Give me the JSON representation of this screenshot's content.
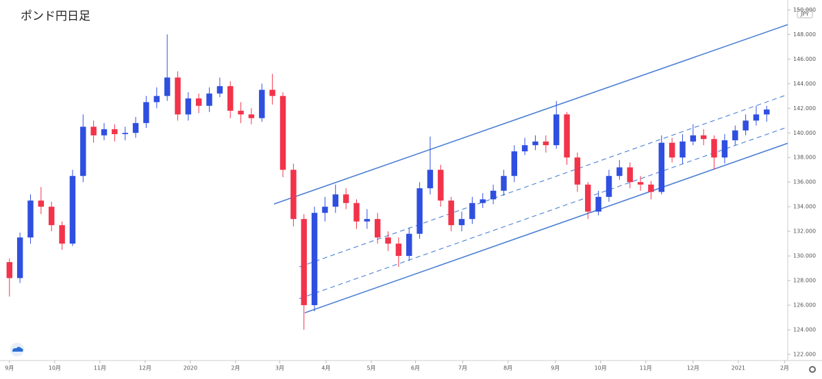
{
  "chart_data": {
    "type": "candlestick",
    "title": "ポンド円日足",
    "currency": "JPY",
    "up_color": "#2f4fe0",
    "down_color": "#f2334a",
    "line_color": "#4a7fd4",
    "grid": false,
    "categories": [
      null,
      null,
      null,
      null,
      null,
      null,
      null,
      null,
      null,
      null,
      null,
      null,
      null,
      null,
      null,
      null,
      null,
      null,
      null,
      null,
      null,
      null,
      null,
      null,
      null,
      null,
      null,
      null,
      null,
      null,
      null,
      null,
      null,
      null,
      null,
      null,
      null,
      null,
      null,
      null,
      null,
      null,
      null,
      null,
      null,
      null,
      null,
      null,
      null,
      null,
      null,
      null,
      null,
      null,
      null,
      null,
      null,
      null,
      null,
      null,
      null,
      null,
      null,
      null,
      null,
      null,
      null,
      null,
      null,
      null,
      null,
      null,
      null
    ],
    "open": [
      129.5,
      128.2,
      131.5,
      134.5,
      134.0,
      132.5,
      131.0,
      136.5,
      140.5,
      139.8,
      140.3,
      139.9,
      140.0,
      140.8,
      142.5,
      143.0,
      144.5,
      141.5,
      142.8,
      142.2,
      143.2,
      143.8,
      141.8,
      141.5,
      141.2,
      143.5,
      143.0,
      137.0,
      133.0,
      126.0,
      133.5,
      134.0,
      135.0,
      134.3,
      132.8,
      133.0,
      131.5,
      131.0,
      130.0,
      131.8,
      135.5,
      137.0,
      134.5,
      132.5,
      133.0,
      134.3,
      134.6,
      135.3,
      136.5,
      138.5,
      139.0,
      139.3,
      139.0,
      141.5,
      138.0,
      135.8,
      133.6,
      134.8,
      136.5,
      137.2,
      136.0,
      135.8,
      135.2,
      139.2,
      138.0,
      139.3,
      139.8,
      139.5,
      138.0,
      139.4,
      140.2,
      141.0,
      141.5
    ],
    "high": [
      129.8,
      131.9,
      135.0,
      135.6,
      134.4,
      132.8,
      137.0,
      141.5,
      141.0,
      140.8,
      140.7,
      140.5,
      141.3,
      143.0,
      143.7,
      148.0,
      145.0,
      143.3,
      143.2,
      143.7,
      144.5,
      144.2,
      142.5,
      142.0,
      144.0,
      144.8,
      143.3,
      137.5,
      133.4,
      134.0,
      134.8,
      135.8,
      135.5,
      134.6,
      133.8,
      133.5,
      132.0,
      131.5,
      132.3,
      136.0,
      139.7,
      137.4,
      134.8,
      133.6,
      134.8,
      135.1,
      135.8,
      137.0,
      139.0,
      139.6,
      139.8,
      139.8,
      142.6,
      141.7,
      138.4,
      136.0,
      135.3,
      137.0,
      137.8,
      137.6,
      136.5,
      136.1,
      139.8,
      139.6,
      139.9,
      140.7,
      140.3,
      139.8,
      139.9,
      140.6,
      141.5,
      142.2,
      142.2
    ],
    "low": [
      126.7,
      127.8,
      131.0,
      133.4,
      132.0,
      130.5,
      130.8,
      136.0,
      139.2,
      139.4,
      139.3,
      139.4,
      139.6,
      140.4,
      142.0,
      142.6,
      141.0,
      141.0,
      141.6,
      141.7,
      142.9,
      141.2,
      140.8,
      140.7,
      140.9,
      142.3,
      136.4,
      132.4,
      124.0,
      125.5,
      132.8,
      133.5,
      133.8,
      132.2,
      132.2,
      131.0,
      130.4,
      129.1,
      129.6,
      131.4,
      135.0,
      134.0,
      132.0,
      132.0,
      132.6,
      133.9,
      134.2,
      134.9,
      136.0,
      138.2,
      138.6,
      138.4,
      138.7,
      137.4,
      135.2,
      133.0,
      133.3,
      134.4,
      136.2,
      135.5,
      135.3,
      134.6,
      135.0,
      137.6,
      137.5,
      139.0,
      139.0,
      137.0,
      137.5,
      139.0,
      139.8,
      140.6,
      140.9
    ],
    "close": [
      128.2,
      131.5,
      134.5,
      134.0,
      132.5,
      131.0,
      136.5,
      140.5,
      139.8,
      140.3,
      139.9,
      140.0,
      140.8,
      142.5,
      143.0,
      144.5,
      141.5,
      142.8,
      142.2,
      143.2,
      143.8,
      141.8,
      141.5,
      141.2,
      143.5,
      143.0,
      137.0,
      133.0,
      126.0,
      133.5,
      134.0,
      135.0,
      134.3,
      132.8,
      133.0,
      131.5,
      131.0,
      130.0,
      131.8,
      135.5,
      137.0,
      134.5,
      132.5,
      133.0,
      134.3,
      134.6,
      135.3,
      136.5,
      138.5,
      139.0,
      139.3,
      139.0,
      141.5,
      138.0,
      135.8,
      133.6,
      134.8,
      136.5,
      137.2,
      136.0,
      135.8,
      135.2,
      139.2,
      138.0,
      139.3,
      139.8,
      139.5,
      138.0,
      139.4,
      140.2,
      141.0,
      141.5,
      141.9
    ],
    "xlim": [
      -0.9,
      74
    ],
    "xticks": [
      {
        "value": 0,
        "label": "9月"
      },
      {
        "value": 4.3,
        "label": "10月"
      },
      {
        "value": 8.6,
        "label": "11月"
      },
      {
        "value": 12.9,
        "label": "12月"
      },
      {
        "value": 17.2,
        "label": "2020"
      },
      {
        "value": 21.5,
        "label": "2月"
      },
      {
        "value": 25.7,
        "label": "3月"
      },
      {
        "value": 30.1,
        "label": "4月"
      },
      {
        "value": 34.4,
        "label": "5月"
      },
      {
        "value": 38.6,
        "label": "6月"
      },
      {
        "value": 43.1,
        "label": "7月"
      },
      {
        "value": 47.4,
        "label": "8月"
      },
      {
        "value": 51.9,
        "label": "9月"
      },
      {
        "value": 56.2,
        "label": "10月"
      },
      {
        "value": 60.5,
        "label": "11月"
      },
      {
        "value": 65,
        "label": "12月"
      },
      {
        "value": 69.3,
        "label": "2021"
      },
      {
        "value": 73.7,
        "label": "2月"
      }
    ],
    "ylim": [
      121.5,
      150.8
    ],
    "yticks": [
      {
        "value": 122,
        "label": "122.000"
      },
      {
        "value": 124,
        "label": "124.000"
      },
      {
        "value": 126,
        "label": "126.000"
      },
      {
        "value": 128,
        "label": "128.000"
      },
      {
        "value": 130,
        "label": "130.000"
      },
      {
        "value": 132,
        "label": "132.000"
      },
      {
        "value": 134,
        "label": "134.000"
      },
      {
        "value": 136,
        "label": "136.000"
      },
      {
        "value": 138,
        "label": "138.000"
      },
      {
        "value": 140,
        "label": "140.000"
      },
      {
        "value": 142,
        "label": "142.000"
      },
      {
        "value": 144,
        "label": "144.000"
      },
      {
        "value": 146,
        "label": "146.000"
      },
      {
        "value": 148,
        "label": "148.000"
      },
      {
        "value": 150,
        "label": "150.000"
      }
    ],
    "lines": [
      {
        "style": "solid",
        "x": [
          25.15,
          74
        ],
        "y": [
          134.22,
          148.8
        ]
      },
      {
        "style": "dashed",
        "x": [
          27.56,
          74
        ],
        "y": [
          129.11,
          143.12
        ]
      },
      {
        "style": "dashed",
        "x": [
          27.56,
          74
        ],
        "y": [
          126.53,
          140.48
        ]
      },
      {
        "style": "solid",
        "x": [
          28.08,
          74
        ],
        "y": [
          125.38,
          139.16
        ]
      }
    ]
  }
}
